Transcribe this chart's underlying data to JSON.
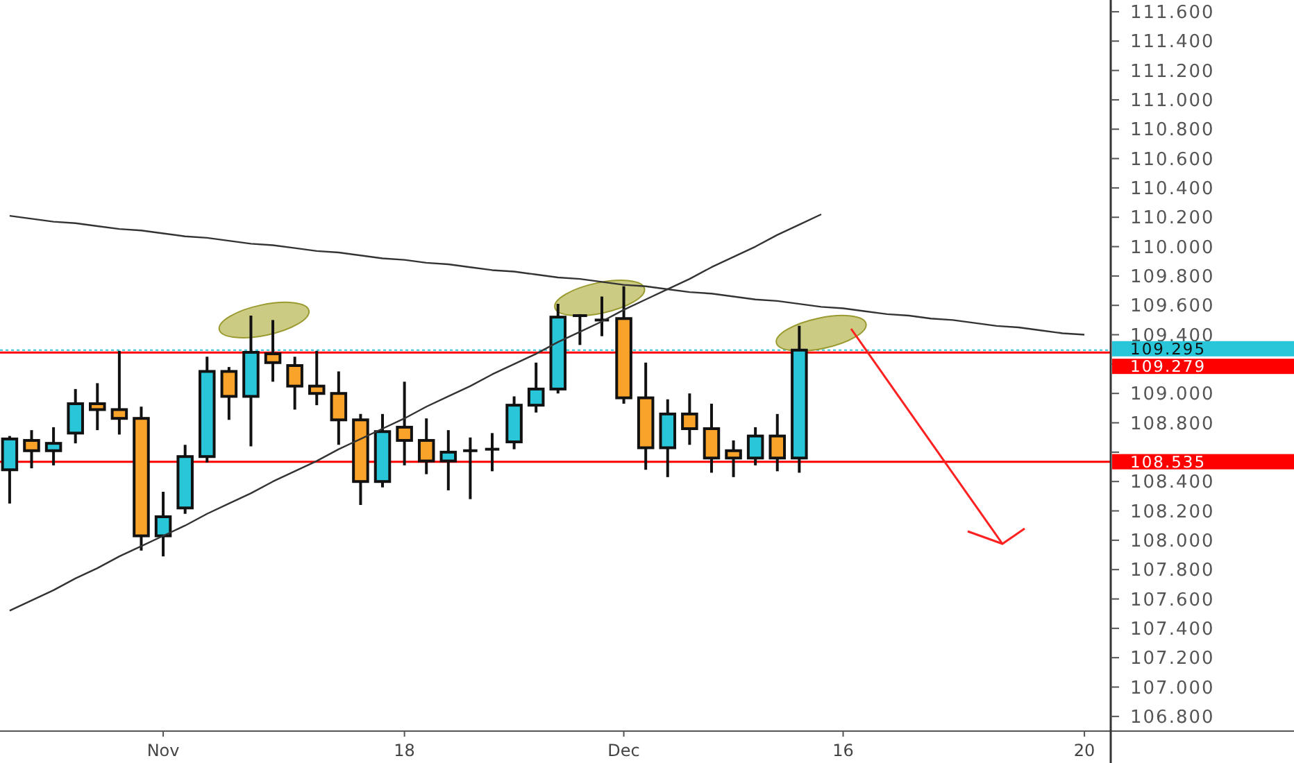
{
  "chart_data": {
    "type": "candlestick",
    "categories": [
      null,
      null,
      null,
      null,
      null,
      null,
      null,
      "Nov",
      null,
      null,
      null,
      null,
      null,
      null,
      null,
      null,
      null,
      null,
      "18",
      null,
      null,
      null,
      null,
      null,
      null,
      null,
      null,
      null,
      "Dec",
      null,
      null,
      null,
      null,
      null,
      null,
      null,
      null,
      null,
      "16",
      null,
      null,
      null,
      null,
      null,
      null,
      null,
      null,
      null,
      null,
      "20"
    ],
    "ohlc": [
      [
        108.48,
        108.71,
        108.25,
        108.69
      ],
      [
        108.68,
        108.75,
        108.49,
        108.61
      ],
      [
        108.61,
        108.77,
        108.51,
        108.66
      ],
      [
        108.73,
        109.03,
        108.66,
        108.93
      ],
      [
        108.93,
        109.07,
        108.75,
        108.89
      ],
      [
        108.89,
        109.29,
        108.72,
        108.83
      ],
      [
        108.83,
        108.91,
        107.93,
        108.03
      ],
      [
        108.03,
        108.33,
        107.89,
        108.16
      ],
      [
        108.22,
        108.65,
        108.18,
        108.57
      ],
      [
        108.57,
        109.25,
        108.53,
        109.15
      ],
      [
        109.15,
        109.18,
        108.82,
        108.98
      ],
      [
        108.98,
        109.53,
        108.64,
        109.28
      ],
      [
        109.27,
        109.5,
        109.08,
        109.21
      ],
      [
        109.19,
        109.25,
        108.89,
        109.05
      ],
      [
        109.05,
        109.29,
        108.92,
        109.0
      ],
      [
        109.0,
        109.15,
        108.65,
        108.82
      ],
      [
        108.82,
        108.86,
        108.24,
        108.4
      ],
      [
        108.4,
        108.86,
        108.36,
        108.74
      ],
      [
        108.77,
        109.08,
        108.51,
        108.68
      ],
      [
        108.68,
        108.83,
        108.45,
        108.54
      ],
      [
        108.54,
        108.75,
        108.34,
        108.6
      ],
      [
        108.61,
        108.7,
        108.28,
        108.61
      ],
      [
        108.62,
        108.73,
        108.47,
        108.62
      ],
      [
        108.67,
        108.98,
        108.62,
        108.92
      ],
      [
        108.92,
        109.21,
        108.87,
        109.03
      ],
      [
        109.03,
        109.61,
        109.0,
        109.52
      ],
      [
        109.53,
        109.54,
        109.33,
        109.53
      ],
      [
        109.5,
        109.66,
        109.39,
        109.5
      ],
      [
        109.51,
        109.73,
        108.93,
        108.97
      ],
      [
        108.97,
        109.21,
        108.48,
        108.63
      ],
      [
        108.63,
        108.96,
        108.43,
        108.86
      ],
      [
        108.86,
        109.0,
        108.65,
        108.76
      ],
      [
        108.76,
        108.93,
        108.46,
        108.56
      ],
      [
        108.61,
        108.68,
        108.43,
        108.56
      ],
      [
        108.56,
        108.77,
        108.51,
        108.71
      ],
      [
        108.71,
        108.86,
        108.47,
        108.56
      ],
      [
        108.56,
        109.46,
        108.46,
        109.295
      ],
      null,
      null,
      null,
      null,
      null,
      null,
      null,
      null,
      null,
      null,
      null,
      null,
      null
    ],
    "colors": [
      "#29c5d8",
      "#faa32a",
      "#29c5d8",
      "#29c5d8",
      "#faa32a",
      "#faa32a",
      "#faa32a",
      "#29c5d8",
      "#29c5d8",
      "#29c5d8",
      "#faa32a",
      "#29c5d8",
      "#faa32a",
      "#faa32a",
      "#faa32a",
      "#faa32a",
      "#faa32a",
      "#29c5d8",
      "#faa32a",
      "#faa32a",
      "#29c5d8",
      "#111111",
      "#111111",
      "#29c5d8",
      "#29c5d8",
      "#29c5d8",
      "#111111",
      "#111111",
      "#faa32a",
      "#faa32a",
      "#29c5d8",
      "#faa32a",
      "#faa32a",
      "#faa32a",
      "#29c5d8",
      "#faa32a",
      "#29c5d8",
      null,
      null,
      null,
      null,
      null,
      null,
      null,
      null,
      null,
      null,
      null,
      null,
      null
    ],
    "series": [
      {
        "type": "line",
        "color": "#333333",
        "values": [
          107.52,
          107.59,
          107.66,
          107.74,
          107.81,
          107.89,
          107.96,
          108.03,
          108.1,
          108.18,
          108.25,
          108.32,
          108.4,
          108.47,
          108.54,
          108.62,
          108.69,
          108.76,
          108.83,
          108.91,
          108.98,
          109.05,
          109.13,
          109.2,
          109.27,
          109.35,
          109.42,
          109.49,
          109.57,
          109.64,
          109.71,
          109.78,
          109.86,
          109.93,
          110.0,
          110.08,
          110.15,
          110.22,
          null,
          null,
          null,
          null,
          null,
          null,
          null,
          null,
          null,
          null,
          null,
          null
        ]
      },
      {
        "type": "line",
        "color": "#333333",
        "values": [
          110.21,
          110.19,
          110.17,
          110.16,
          110.14,
          110.12,
          110.11,
          110.09,
          110.07,
          110.06,
          110.04,
          110.02,
          110.01,
          109.99,
          109.97,
          109.96,
          109.94,
          109.92,
          109.91,
          109.89,
          109.88,
          109.86,
          109.84,
          109.83,
          109.81,
          109.79,
          109.78,
          109.76,
          109.74,
          109.73,
          109.71,
          109.69,
          109.68,
          109.66,
          109.64,
          109.63,
          109.61,
          109.59,
          109.58,
          109.56,
          109.54,
          109.53,
          109.51,
          109.5,
          109.48,
          109.46,
          109.45,
          109.43,
          109.41,
          109.4
        ]
      }
    ],
    "ylim": [
      106.7,
      111.68
    ],
    "yticks": [
      {
        "value": 106.8,
        "label": "106.800"
      },
      {
        "value": 107,
        "label": "107.000"
      },
      {
        "value": 107.2,
        "label": "107.200"
      },
      {
        "value": 107.4,
        "label": "107.400"
      },
      {
        "value": 107.6,
        "label": "107.600"
      },
      {
        "value": 107.8,
        "label": "107.800"
      },
      {
        "value": 108,
        "label": "108.000"
      },
      {
        "value": 108.2,
        "label": "108.200"
      },
      {
        "value": 108.4,
        "label": "108.400"
      },
      {
        "value": 108.6,
        "label": null
      },
      {
        "value": 108.8,
        "label": "108.800"
      },
      {
        "value": 109,
        "label": "109.000"
      },
      {
        "value": 109.2,
        "label": null
      },
      {
        "value": 109.4,
        "label": "109.400"
      },
      {
        "value": 109.6,
        "label": "109.600"
      },
      {
        "value": 109.8,
        "label": "109.800"
      },
      {
        "value": 110,
        "label": "110.000"
      },
      {
        "value": 110.2,
        "label": "110.200"
      },
      {
        "value": 110.4,
        "label": "110.400"
      },
      {
        "value": 110.6,
        "label": "110.600"
      },
      {
        "value": 110.8,
        "label": "110.800"
      },
      {
        "value": 111,
        "label": "111.000"
      },
      {
        "value": 111.2,
        "label": "111.200"
      },
      {
        "value": 111.4,
        "label": "111.400"
      },
      {
        "value": 111.6,
        "label": "111.600"
      }
    ],
    "ref_lines": [
      {
        "axis": "y",
        "value": 109.295,
        "label": "109.295",
        "color": "#29c5d8",
        "line_style": "dotted"
      },
      {
        "axis": "y",
        "value": 109.279,
        "label": "109.279",
        "color": "#ff0000",
        "line_style": "solid"
      },
      {
        "axis": "y",
        "value": 108.535,
        "label": "108.535",
        "color": "#ff0000",
        "line_style": "solid"
      }
    ]
  }
}
